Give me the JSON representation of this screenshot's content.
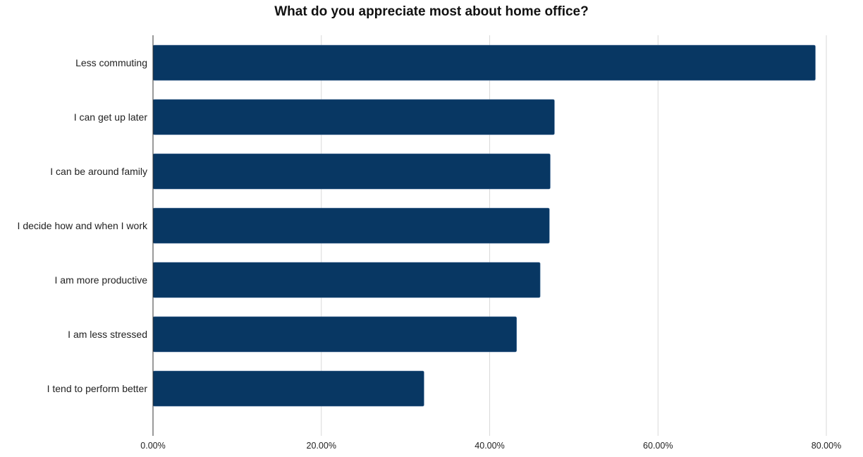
{
  "chart_data": {
    "type": "bar",
    "orientation": "horizontal",
    "title": "What do you appreciate most about home office?",
    "categories": [
      "Less commuting",
      "I can get up later",
      "I can be around family",
      "I decide how and when I work",
      "I am more productive",
      "I am less stressed",
      "I tend to perform better"
    ],
    "values": [
      78.7,
      47.7,
      47.2,
      47.1,
      46.0,
      43.2,
      32.2
    ],
    "xlim": [
      0,
      80
    ],
    "xticks": [
      0,
      20,
      40,
      60,
      80
    ],
    "xtick_labels": [
      "0.00%",
      "20.00%",
      "40.00%",
      "60.00%",
      "80.00%"
    ],
    "xlabel": "",
    "ylabel": "",
    "grid": "vertical",
    "bar_color": "#083763"
  }
}
